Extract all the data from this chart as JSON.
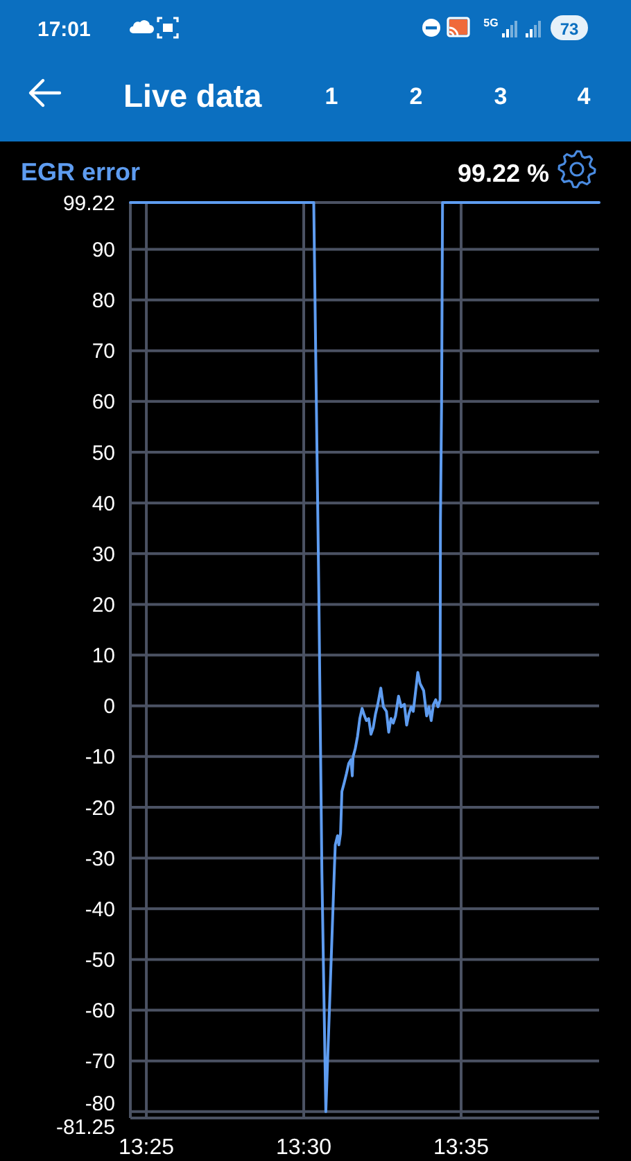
{
  "chart_data": {
    "type": "line",
    "title": "Live data",
    "annotations": [
      "99.22 %",
      "1",
      "2",
      "3",
      "4",
      "17:01",
      "5G",
      "73"
    ],
    "series": [
      {
        "name": "EGR error",
        "color": "#5e9cf0",
        "x": [
          13.4082,
          13.5053,
          13.508,
          13.5096,
          13.5117,
          13.5162,
          13.5167,
          13.5179,
          13.5186,
          13.5195,
          13.5202,
          13.5214,
          13.5226,
          13.5238,
          13.525,
          13.5257,
          13.5261,
          13.5273,
          13.5285,
          13.5297,
          13.5309,
          13.5321,
          13.5332,
          13.5344,
          13.5356,
          13.5368,
          13.538,
          13.5392,
          13.5408,
          13.5422,
          13.5438,
          13.545,
          13.5462,
          13.5474,
          13.5486,
          13.5502,
          13.5516,
          13.5533,
          13.5545,
          13.5557,
          13.5569,
          13.558,
          13.5604,
          13.5616,
          13.5635,
          13.5651,
          13.5663,
          13.5675,
          13.5687,
          13.5699,
          13.5711,
          13.5722,
          13.5724,
          13.573,
          13.5735,
          13.6564
        ],
        "values": [
          99.22,
          99.22,
          22.1,
          -32.4,
          -80,
          -32.4,
          -27.4,
          -25.6,
          -27.4,
          -25.1,
          -16.9,
          -15.2,
          -13.4,
          -11.4,
          -10.6,
          -13.8,
          -10.1,
          -8.4,
          -6.0,
          -2.5,
          -0.5,
          -1.9,
          -2.9,
          -2.5,
          -5.6,
          -4.3,
          -1.6,
          0.3,
          3.5,
          -0.2,
          -1.1,
          -5.2,
          -2.5,
          -3.4,
          -2.0,
          1.9,
          -0.2,
          0.3,
          -3.8,
          -1.6,
          -0.2,
          -1.1,
          6.6,
          4.4,
          3.0,
          -2.0,
          -0.2,
          -2.9,
          0.3,
          1.2,
          -0.2,
          1.2,
          36.5,
          60.2,
          99.22,
          99.22
        ]
      }
    ],
    "xlim": [
      13.4082,
      13.6564
    ],
    "xticks": [
      {
        "value": 13.41667,
        "label": "13:25"
      },
      {
        "value": 13.5,
        "label": "13:30"
      },
      {
        "value": 13.58333,
        "label": "13:35"
      }
    ],
    "ylim": [
      -81.25,
      99.22
    ],
    "yticks": [
      99.22,
      90,
      80,
      70,
      60,
      50,
      40,
      30,
      20,
      10,
      0,
      -10,
      -20,
      -30,
      -40,
      -50,
      -60,
      -70,
      -80,
      -81.25
    ],
    "grid": true
  }
}
